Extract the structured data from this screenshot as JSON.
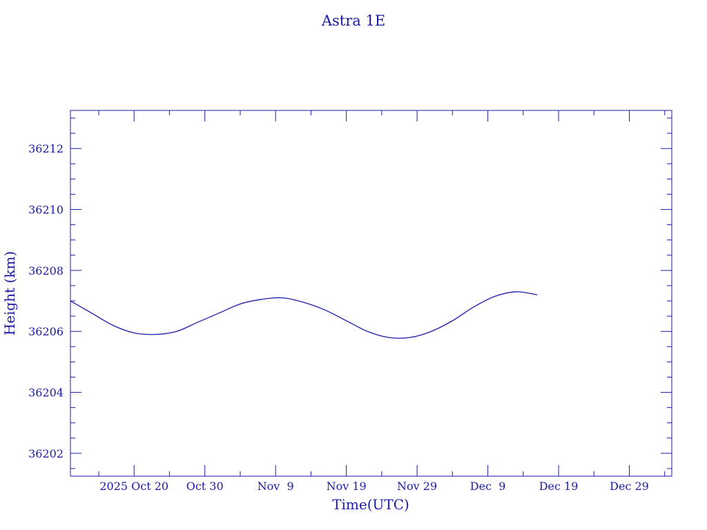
{
  "chart_data": {
    "type": "line",
    "title": "Astra 1E",
    "xlabel": "Time(UTC)",
    "ylabel": "Height (km)",
    "color": "#1a1aa6",
    "xlim": [
      "2025-10-11",
      "2026-01-04"
    ],
    "ylim": [
      36201.25,
      36213.25
    ],
    "x_ticks": [
      {
        "date": "2025-10-20",
        "label": "2025 Oct 20"
      },
      {
        "date": "2025-10-30",
        "label": "Oct 30"
      },
      {
        "date": "2025-11-09",
        "label": "Nov  9"
      },
      {
        "date": "2025-11-19",
        "label": "Nov 19"
      },
      {
        "date": "2025-11-29",
        "label": "Nov 29"
      },
      {
        "date": "2025-12-09",
        "label": "Dec  9"
      },
      {
        "date": "2025-12-19",
        "label": "Dec 19"
      },
      {
        "date": "2025-12-29",
        "label": "Dec 29"
      }
    ],
    "y_ticks": [
      36202,
      36204,
      36206,
      36208,
      36210,
      36212
    ],
    "grid": false,
    "series": [
      {
        "x": [
          "2025-10-11",
          "2025-10-14",
          "2025-10-17",
          "2025-10-20",
          "2025-10-23",
          "2025-10-26",
          "2025-10-29",
          "2025-11-01",
          "2025-11-04",
          "2025-11-07",
          "2025-11-10",
          "2025-11-13",
          "2025-11-16",
          "2025-11-19",
          "2025-11-22",
          "2025-11-25",
          "2025-11-28",
          "2025-12-01",
          "2025-12-04",
          "2025-12-07",
          "2025-12-10",
          "2025-12-13",
          "2025-12-16"
        ],
        "y": [
          36207.0,
          36206.6,
          36206.2,
          36205.95,
          36205.9,
          36206.0,
          36206.3,
          36206.6,
          36206.9,
          36207.05,
          36207.1,
          36206.95,
          36206.7,
          36206.35,
          36206.0,
          36205.8,
          36205.8,
          36206.0,
          36206.35,
          36206.8,
          36207.15,
          36207.3,
          36207.2
        ]
      }
    ]
  }
}
